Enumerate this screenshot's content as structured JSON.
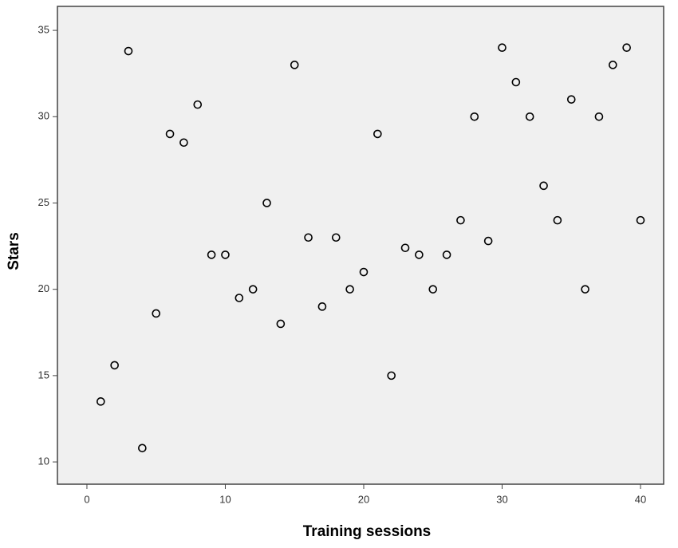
{
  "chart_data": {
    "type": "scatter",
    "x_label": "Training sessions",
    "y_label": "Stars",
    "x": [
      1,
      2,
      3,
      4,
      5,
      6,
      7,
      8,
      9,
      10,
      11,
      12,
      13,
      14,
      15,
      16,
      17,
      18,
      19,
      20,
      21,
      22,
      23,
      24,
      25,
      26,
      27,
      28,
      29,
      30,
      31,
      32,
      33,
      34,
      35,
      36,
      37,
      38,
      39,
      40
    ],
    "values": [
      13.5,
      15.6,
      33.8,
      10.8,
      18.6,
      29,
      28.5,
      30.7,
      22,
      22,
      19.5,
      20,
      25,
      18,
      33,
      23,
      19,
      23,
      20,
      21,
      29,
      15,
      22.4,
      22,
      20,
      22,
      24,
      30,
      22.8,
      34,
      32,
      30,
      26,
      24,
      31,
      20,
      30,
      33,
      34,
      24
    ],
    "xlim": [
      -2.13,
      41.67
    ],
    "ylim": [
      8.71,
      36.39
    ],
    "xticks": [
      0,
      10,
      20,
      30,
      40
    ],
    "yticks": [
      10,
      15,
      20,
      25,
      30,
      35
    ],
    "color": "#000000",
    "background": "#f0f0f0"
  }
}
